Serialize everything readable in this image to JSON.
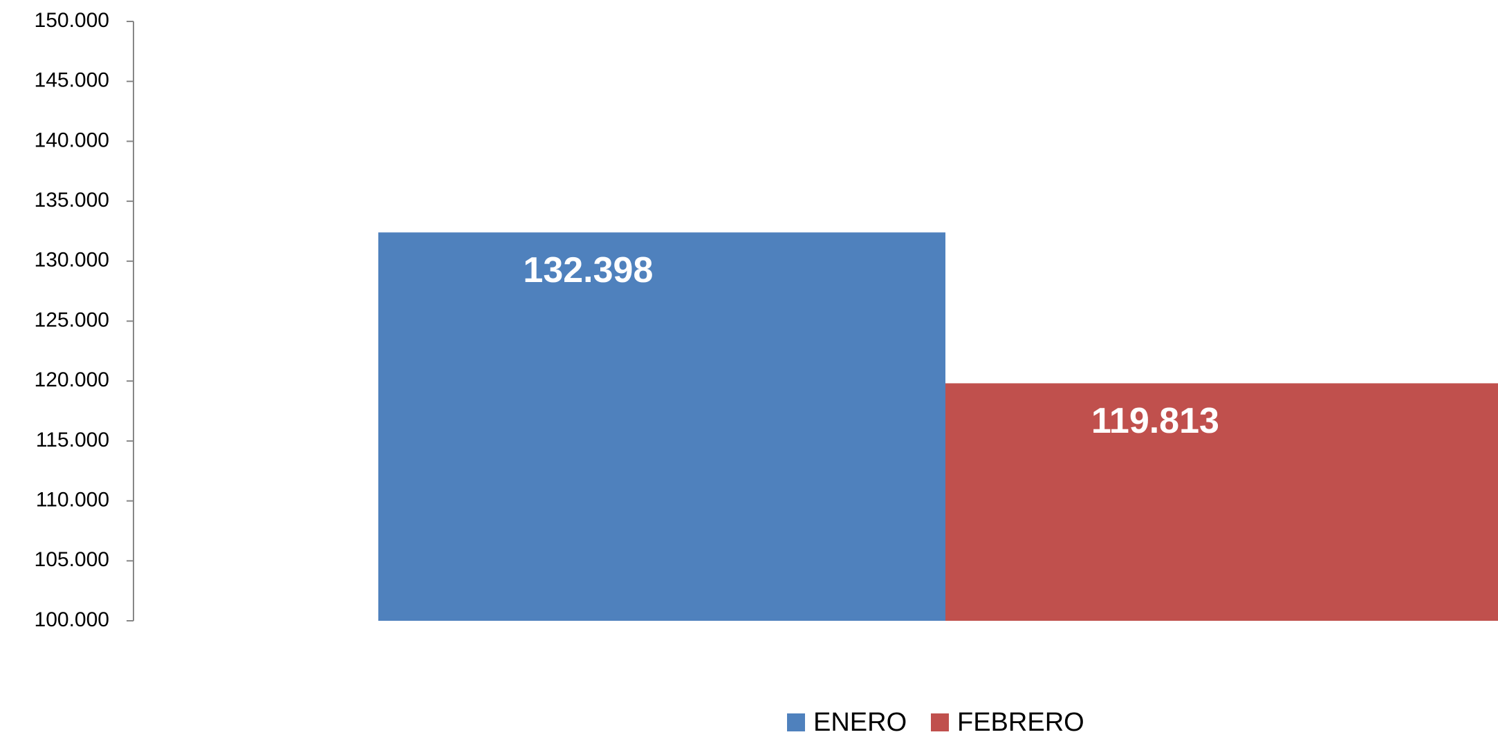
{
  "chart_data": {
    "type": "bar",
    "categories": [
      null
    ],
    "series": [
      {
        "name": "ENERO",
        "color": "#4f81bd",
        "values": [
          132398
        ],
        "value_labels": [
          "132.398"
        ]
      },
      {
        "name": "FEBRERO",
        "color": "#c0504d",
        "values": [
          119813
        ],
        "value_labels": [
          "119.813"
        ]
      }
    ],
    "ylim": [
      100000,
      150000
    ],
    "yticks": [
      {
        "value": 100000,
        "label": "100.000"
      },
      {
        "value": 105000,
        "label": "105.000"
      },
      {
        "value": 110000,
        "label": "110.000"
      },
      {
        "value": 115000,
        "label": "115.000"
      },
      {
        "value": 120000,
        "label": "120.000"
      },
      {
        "value": 125000,
        "label": "125.000"
      },
      {
        "value": 130000,
        "label": "130.000"
      },
      {
        "value": 135000,
        "label": "135.000"
      },
      {
        "value": 140000,
        "label": "140.000"
      },
      {
        "value": 145000,
        "label": "145.000"
      },
      {
        "value": 150000,
        "label": "150.000"
      }
    ],
    "grid": false,
    "legend": "bottom"
  }
}
